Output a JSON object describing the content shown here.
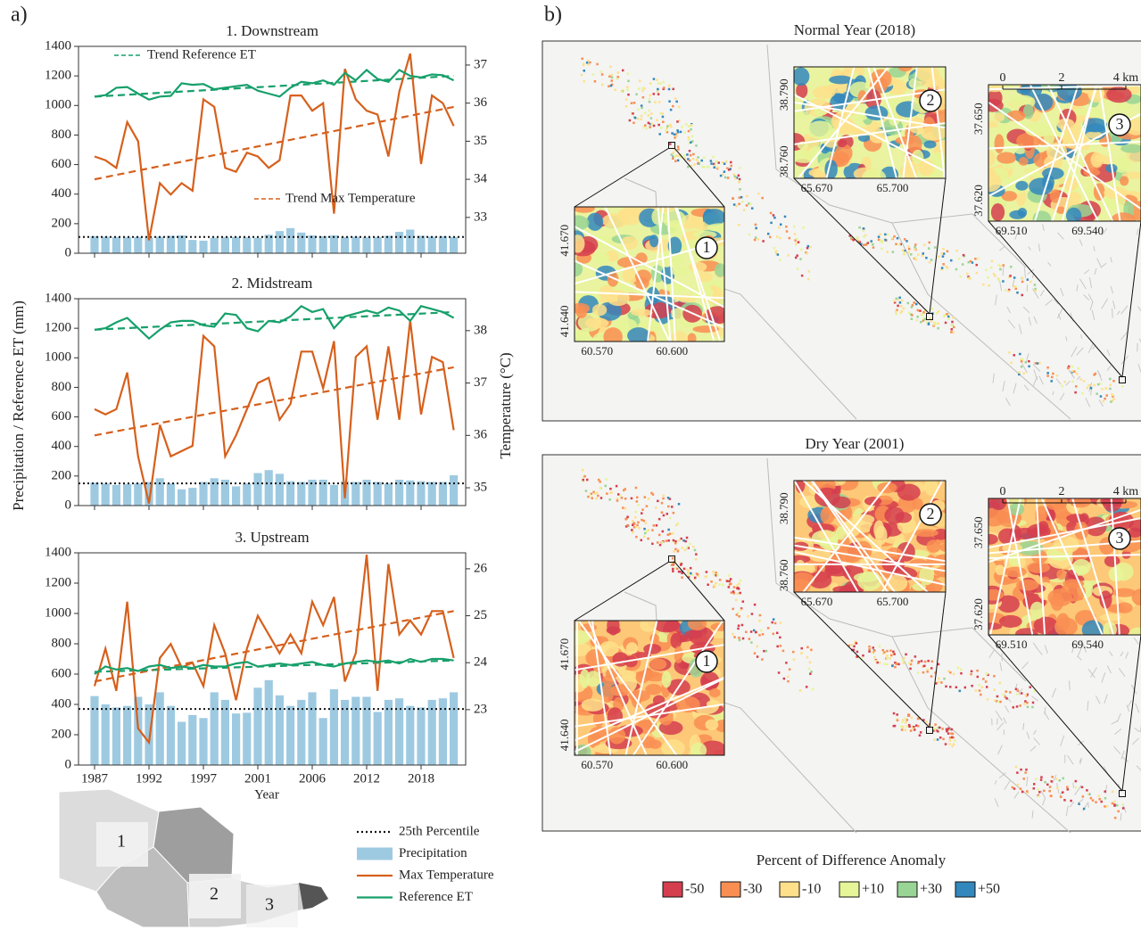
{
  "chart_data": {
    "type": "bar-line",
    "panel_label": "a)",
    "y_label": "Precipitation / Reference ET (mm)",
    "y2_label": "Temperature (°C)",
    "x_label": "Year",
    "categories": [
      "1987",
      null,
      null,
      null,
      null,
      "1992",
      null,
      null,
      null,
      null,
      "1997",
      null,
      null,
      null,
      null,
      "2001",
      null,
      null,
      null,
      null,
      "2006",
      null,
      null,
      null,
      null,
      "2012",
      null,
      null,
      null,
      null,
      "2018",
      null,
      null,
      null
    ],
    "series": [
      {
        "name": "25th Percentile",
        "color": "#111111"
      },
      {
        "name": "Precipitation",
        "color": "#9ecae1"
      },
      {
        "name": "Max Temperature",
        "color": "#d6601c"
      },
      {
        "name": "Reference ET",
        "color": "#17a06b"
      }
    ],
    "panels": [
      {
        "title": "1. Downstream",
        "ylim": [
          0,
          1400
        ],
        "yticks": [
          0,
          200,
          400,
          600,
          800,
          1000,
          1200,
          1400
        ],
        "y2lim": [
          32.06,
          37.49
        ],
        "y2ticks": [
          33,
          34,
          35,
          36,
          37
        ],
        "annotations": [
          "Trend Reference ET",
          "Trend Max Temperature"
        ],
        "precipitation": [
          115,
          112,
          110,
          108,
          110,
          105,
          112,
          118,
          120,
          90,
          85,
          105,
          108,
          110,
          108,
          105,
          125,
          150,
          170,
          140,
          120,
          115,
          120,
          110,
          112,
          108,
          110,
          118,
          145,
          160,
          118,
          112,
          115,
          110
        ],
        "reference_et": [
          1060,
          1070,
          1120,
          1125,
          1080,
          1040,
          1060,
          1065,
          1150,
          1140,
          1145,
          1110,
          1120,
          1130,
          1140,
          1100,
          1080,
          1060,
          1120,
          1160,
          1150,
          1170,
          1140,
          1220,
          1170,
          1240,
          1180,
          1160,
          1240,
          1200,
          1190,
          1210,
          1205,
          1170
        ],
        "max_temperature": [
          34.6,
          34.5,
          34.3,
          35.5,
          35.0,
          32.4,
          33.9,
          33.6,
          33.9,
          33.7,
          36.1,
          35.9,
          34.3,
          34.2,
          34.7,
          34.6,
          34.3,
          34.5,
          36.2,
          36.2,
          35.8,
          36.0,
          33.1,
          36.9,
          36.1,
          35.8,
          35.7,
          34.6,
          36.3,
          37.3,
          34.4,
          36.2,
          36.0,
          35.4
        ],
        "percentile": 110,
        "trend_reference_et": [
          1060,
          1200
        ],
        "trend_max_temperature": [
          34.0,
          35.9
        ]
      },
      {
        "title": "2. Midstream",
        "ylim": [
          0,
          1400
        ],
        "yticks": [
          0,
          200,
          400,
          600,
          800,
          1000,
          1200,
          1400
        ],
        "y2lim": [
          34.66,
          38.61
        ],
        "y2ticks": [
          35,
          36,
          37,
          38
        ],
        "precipitation": [
          155,
          150,
          140,
          145,
          150,
          160,
          185,
          150,
          110,
          120,
          160,
          185,
          175,
          130,
          150,
          220,
          240,
          215,
          165,
          160,
          175,
          175,
          140,
          165,
          160,
          175,
          160,
          150,
          175,
          170,
          165,
          160,
          160,
          205
        ],
        "reference_et": [
          1190,
          1200,
          1240,
          1270,
          1200,
          1130,
          1190,
          1240,
          1250,
          1250,
          1220,
          1210,
          1300,
          1290,
          1200,
          1180,
          1250,
          1240,
          1280,
          1350,
          1310,
          1330,
          1200,
          1280,
          1300,
          1320,
          1300,
          1340,
          1320,
          1250,
          1350,
          1330,
          1310,
          1270
        ],
        "max_temperature": [
          36.5,
          36.4,
          36.5,
          37.2,
          35.6,
          34.7,
          36.2,
          35.6,
          35.7,
          35.8,
          37.9,
          37.7,
          35.6,
          36.0,
          36.5,
          37.0,
          37.1,
          36.3,
          36.6,
          37.6,
          37.6,
          36.9,
          37.8,
          34.8,
          37.5,
          37.7,
          36.3,
          37.7,
          36.3,
          38.2,
          36.4,
          37.5,
          37.4,
          36.1
        ],
        "percentile": 150,
        "trend_reference_et": [
          1190,
          1310
        ],
        "trend_max_temperature": [
          36.0,
          37.3
        ]
      },
      {
        "title": "3. Upstream",
        "ylim": [
          0,
          1400
        ],
        "yticks": [
          0,
          200,
          400,
          600,
          800,
          1000,
          1200,
          1400
        ],
        "y2lim": [
          21.82,
          26.34
        ],
        "y2ticks": [
          23,
          24,
          25,
          26
        ],
        "precipitation": [
          455,
          400,
          380,
          390,
          450,
          400,
          480,
          390,
          285,
          330,
          310,
          480,
          430,
          340,
          345,
          510,
          560,
          460,
          390,
          430,
          480,
          310,
          500,
          430,
          450,
          450,
          350,
          430,
          440,
          390,
          380,
          430,
          440,
          480
        ],
        "reference_et": [
          600,
          650,
          630,
          640,
          620,
          650,
          660,
          640,
          650,
          640,
          660,
          650,
          650,
          670,
          680,
          650,
          660,
          670,
          660,
          670,
          680,
          660,
          650,
          670,
          680,
          690,
          680,
          690,
          670,
          700,
          680,
          700,
          700,
          690
        ],
        "max_temperature": [
          23.5,
          24.3,
          23.4,
          25.3,
          22.6,
          22.3,
          24.1,
          24.4,
          23.9,
          24.0,
          23.5,
          24.8,
          24.2,
          23.2,
          24.3,
          25.0,
          24.6,
          24.2,
          24.6,
          24.2,
          25.3,
          24.8,
          25.4,
          23.6,
          24.2,
          26.3,
          23.4,
          26.1,
          24.6,
          24.9,
          24.6,
          25.1,
          25.1,
          24.1
        ],
        "percentile": 370,
        "trend_reference_et": [
          615,
          690
        ],
        "trend_max_temperature": [
          23.6,
          25.1
        ]
      }
    ]
  },
  "region_map": {
    "labels": [
      "1",
      "2",
      "3"
    ]
  },
  "maps": {
    "panel_label": "b)",
    "years": [
      {
        "title": "Normal Year (2018)",
        "insets": [
          {
            "number": "1",
            "lat_labels": [
              "41.670",
              "41.640"
            ],
            "lon_labels": [
              "60.570",
              "60.600"
            ]
          },
          {
            "number": "2",
            "lat_labels": [
              "38.790",
              "38.760"
            ],
            "lon_labels": [
              "65.670",
              "65.700"
            ]
          },
          {
            "number": "3",
            "lat_labels": [
              "37.650",
              "37.620"
            ],
            "lon_labels": [
              "69.510",
              "69.540"
            ]
          }
        ],
        "scale": [
          "0",
          "2",
          "4 km"
        ]
      },
      {
        "title": "Dry Year (2001)",
        "insets": [
          {
            "number": "1",
            "lat_labels": [
              "41.670",
              "41.640"
            ],
            "lon_labels": [
              "60.570",
              "60.600"
            ]
          },
          {
            "number": "2",
            "lat_labels": [
              "38.790",
              "38.760"
            ],
            "lon_labels": [
              "65.670",
              "65.700"
            ]
          },
          {
            "number": "3",
            "lat_labels": [
              "37.650",
              "37.620"
            ],
            "lon_labels": [
              "69.510",
              "69.540"
            ]
          }
        ],
        "scale": [
          "0",
          "2",
          "4 km"
        ]
      }
    ],
    "colorbar": {
      "title": "Percent of Difference Anomaly",
      "labels": [
        "-50",
        "-30",
        "-10",
        "+10",
        "+30",
        "+50"
      ],
      "colors": [
        "#d53e4f",
        "#f98e52",
        "#fee08b",
        "#e6f598",
        "#99d594",
        "#3288bd"
      ]
    }
  }
}
